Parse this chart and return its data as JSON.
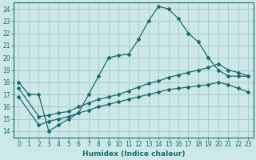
{
  "xlabel": "Humidex (Indice chaleur)",
  "bg_color": "#cce8e8",
  "grid_color": "#aacccc",
  "line_color": "#1a6b6b",
  "xlim": [
    -0.5,
    23.5
  ],
  "ylim": [
    13.5,
    24.5
  ],
  "yticks": [
    14,
    15,
    16,
    17,
    18,
    19,
    20,
    21,
    22,
    23,
    24
  ],
  "xticks": [
    0,
    1,
    2,
    3,
    4,
    5,
    6,
    7,
    8,
    9,
    10,
    11,
    12,
    13,
    14,
    15,
    16,
    17,
    18,
    19,
    20,
    21,
    22,
    23
  ],
  "line1_x": [
    0,
    1,
    2,
    3,
    4,
    5,
    6,
    7,
    8,
    9,
    10,
    11,
    12,
    13,
    14,
    15,
    16,
    17,
    18,
    19,
    20,
    21,
    22,
    23
  ],
  "line1_y": [
    18.0,
    17.0,
    17.0,
    14.0,
    14.5,
    15.0,
    15.5,
    17.0,
    18.5,
    20.0,
    20.2,
    20.3,
    21.5,
    23.0,
    24.2,
    24.0,
    23.2,
    22.0,
    21.3,
    20.0,
    19.0,
    18.5,
    18.5,
    18.5
  ],
  "line2_x": [
    0,
    2,
    3,
    4,
    5,
    6,
    7,
    8,
    9,
    10,
    11,
    12,
    13,
    14,
    15,
    16,
    17,
    18,
    19,
    20,
    21,
    22,
    23
  ],
  "line2_y": [
    17.5,
    15.2,
    15.3,
    15.5,
    15.6,
    16.0,
    16.3,
    16.6,
    16.8,
    17.0,
    17.3,
    17.6,
    17.9,
    18.1,
    18.4,
    18.6,
    18.8,
    19.0,
    19.2,
    19.5,
    19.0,
    18.8,
    18.5
  ],
  "line3_x": [
    0,
    2,
    3,
    4,
    5,
    6,
    7,
    8,
    9,
    10,
    11,
    12,
    13,
    14,
    15,
    16,
    17,
    18,
    19,
    20,
    21,
    22,
    23
  ],
  "line3_y": [
    16.8,
    14.5,
    14.8,
    15.0,
    15.2,
    15.5,
    15.7,
    16.0,
    16.2,
    16.4,
    16.6,
    16.8,
    17.0,
    17.2,
    17.4,
    17.5,
    17.6,
    17.7,
    17.8,
    18.0,
    17.8,
    17.5,
    17.2
  ]
}
